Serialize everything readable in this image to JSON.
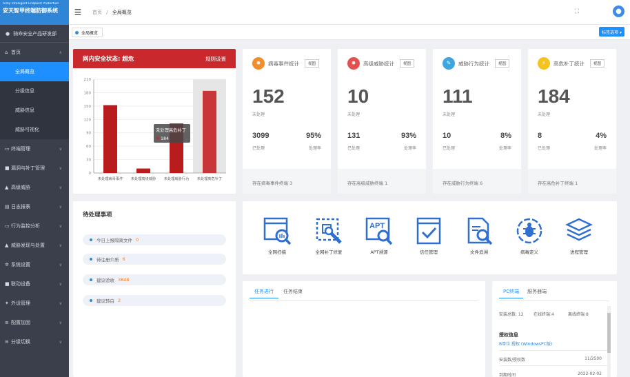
{
  "sidebar": {
    "logo_en": "Anhy Intelligent Endpoint Protection",
    "logo_cn": "安天智甲终端防御系统",
    "org": "骑命安全产品研发部",
    "items": [
      {
        "icon": "home-icon",
        "glyph": "⌂",
        "label": "首页",
        "chev": "∧"
      },
      {
        "icon": "monitor-icon",
        "glyph": "▭",
        "label": "终端管理",
        "chev": "∨"
      },
      {
        "icon": "bug-icon",
        "glyph": "■",
        "label": "漏洞与补丁管理",
        "chev": "∨"
      },
      {
        "icon": "threat-icon",
        "glyph": "▲",
        "label": "高级威胁",
        "chev": "∨"
      },
      {
        "icon": "log-icon",
        "glyph": "▤",
        "label": "日志报表",
        "chev": "∨"
      },
      {
        "icon": "behavior-icon",
        "glyph": "▭",
        "label": "行为监控分析",
        "chev": "∨"
      },
      {
        "icon": "alert-icon",
        "glyph": "▲",
        "label": "威胁发现与处置",
        "chev": "∨"
      },
      {
        "icon": "settings-icon",
        "glyph": "✲",
        "label": "系统设置",
        "chev": "∨"
      },
      {
        "icon": "linkage-icon",
        "glyph": "■",
        "label": "联动设备",
        "chev": "∨"
      },
      {
        "icon": "peripheral-icon",
        "glyph": "✦",
        "label": "外设管理",
        "chev": "∨"
      },
      {
        "icon": "config-icon",
        "glyph": "≡",
        "label": "配置加固",
        "chev": "∨"
      },
      {
        "icon": "switch-icon",
        "glyph": "≡",
        "label": "分级切换",
        "chev": "∨"
      }
    ],
    "subitems": [
      "全局概览",
      "分级信息",
      "威胁信息",
      "威胁可视化"
    ]
  },
  "topbar": {
    "crumb_home": "首页",
    "crumb_sep": "/",
    "crumb_current": "全局概览",
    "expand_glyph": "⛶",
    "user_glyph": "●"
  },
  "tabrow": {
    "current_tab": "全局概览",
    "menu_button": "标签选项 ▾"
  },
  "security": {
    "title": "网内安全状态:  超危",
    "rule_link": "规则设置",
    "tooltip_title": "未处理高危补丁",
    "tooltip_value": "184"
  },
  "chart_data": {
    "type": "bar",
    "categories": [
      "未处理病毒事件",
      "未处理高级威胁",
      "未处理威胁行为",
      "未处理高危补丁"
    ],
    "values": [
      152,
      10,
      111,
      184
    ],
    "ylim": [
      0,
      210
    ],
    "yticks": [
      0,
      30,
      60,
      90,
      120,
      150,
      180,
      210
    ],
    "highlighted_index": 3,
    "colors": {
      "bar": "#b81c1c",
      "bar_highlight": "#c9363a",
      "hover_band": "#e6e6e6"
    }
  },
  "stats": [
    {
      "icon": "virus-icon",
      "glyph": "✹",
      "color": "#f28d2c",
      "title": "病毒事件统计",
      "btn": "视图",
      "big": "152",
      "big_label": "未处理",
      "handled": "3099",
      "handled_label": "已处理",
      "rate": "95%",
      "rate_label": "处理率",
      "footer": "存在病毒事件终端  3"
    },
    {
      "icon": "threat-icon",
      "glyph": "✸",
      "color": "#e2504f",
      "title": "高级威胁统计",
      "btn": "视图",
      "big": "10",
      "big_label": "未处理",
      "handled": "131",
      "handled_label": "已处理",
      "rate": "93%",
      "rate_label": "处理率",
      "footer": "存在高级威胁终端  1"
    },
    {
      "icon": "behavior-icon",
      "glyph": "✎",
      "color": "#3ea6e0",
      "title": "威胁行为统计",
      "btn": "视图",
      "big": "111",
      "big_label": "未处理",
      "handled": "10",
      "handled_label": "已处理",
      "rate": "8%",
      "rate_label": "处理率",
      "footer": "存在威胁行为终端  6"
    },
    {
      "icon": "patch-icon",
      "glyph": "⚡",
      "color": "#f5c21e",
      "title": "高危补丁统计",
      "btn": "视图",
      "big": "184",
      "big_label": "未处理",
      "handled": "8",
      "handled_label": "已处理",
      "rate": "4%",
      "rate_label": "处理率",
      "footer": "存在高危补丁终端  1"
    }
  ],
  "pending": {
    "title": "待处理事项",
    "items": [
      {
        "label": "今日上报隔离文件",
        "count": "0"
      },
      {
        "label": "待注册介质",
        "count": "6"
      },
      {
        "label": "建议验收",
        "count": "3848"
      },
      {
        "label": "建议转白",
        "count": "2"
      }
    ]
  },
  "tools": [
    {
      "icon": "full-scan-icon",
      "label": "全网扫描"
    },
    {
      "icon": "patch-repair-icon",
      "label": "全网补丁修复"
    },
    {
      "icon": "apt-trace-icon",
      "label": "APT溯源",
      "text": "APT"
    },
    {
      "icon": "trust-manage-icon",
      "label": "信任管理"
    },
    {
      "icon": "file-trace-icon",
      "label": "文件追溯"
    },
    {
      "icon": "virus-define-icon",
      "label": "病毒定义"
    },
    {
      "icon": "process-manage-icon",
      "label": "进程管理"
    }
  ],
  "tasks": {
    "tab_running": "任务进行",
    "tab_done": "任务结束"
  },
  "terminal": {
    "tab_pc": "PC终端",
    "tab_server": "服务器端",
    "total": "安装总数: 12",
    "online": "在线终端:4",
    "offline": "离线终端:8",
    "auth_title": "授权信息",
    "auth_link": "B单位 授权 (WindowsPC版)",
    "install_label": "安装数/授权数",
    "install_value": "11/2500",
    "expire_label": "到期时间",
    "expire_value": "2022-02-02"
  }
}
